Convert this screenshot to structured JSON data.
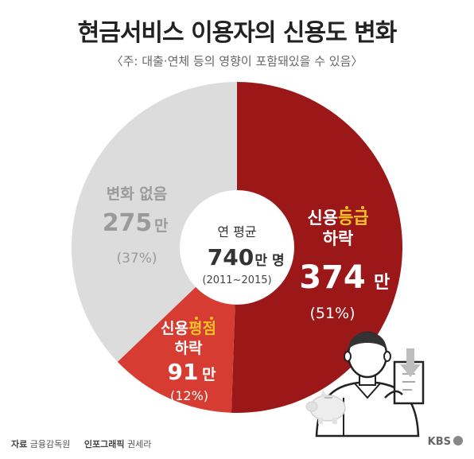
{
  "title": "현금서비스 이용자의 신용도 변화",
  "subtitle": "〈주: 대출·연체 등의 영향이 포함돼있을 수 있음〉",
  "chart_data": {
    "type": "pie",
    "center": {
      "line1": "연 평균",
      "value": "740",
      "unit": "만 명",
      "period": "(2011~2015)"
    },
    "slices": [
      {
        "label_prefix": "신용",
        "label_highlight": "등급",
        "label_suffix": "하락",
        "value": 374,
        "value_text": "374",
        "unit": "만",
        "percent": 51,
        "percent_text": "(51%)",
        "color": "#9c1717"
      },
      {
        "label_prefix": "신용",
        "label_highlight": "평점",
        "label_suffix": "하락",
        "value": 91,
        "value_text": "91",
        "unit": "만",
        "percent": 12,
        "percent_text": "(12%)",
        "color": "#d63c31"
      },
      {
        "label_prefix": "변화 없음",
        "label_highlight": "",
        "label_suffix": "",
        "value": 275,
        "value_text": "275",
        "unit": "만",
        "percent": 37,
        "percent_text": "(37%)",
        "color": "#dcdcdc"
      }
    ],
    "highlight_color": "#f6c22a"
  },
  "footer": {
    "source_label": "자료",
    "source": "금융감독원",
    "credit_label": "인포그래픽",
    "credit": "권세라",
    "logo": "KBS"
  }
}
